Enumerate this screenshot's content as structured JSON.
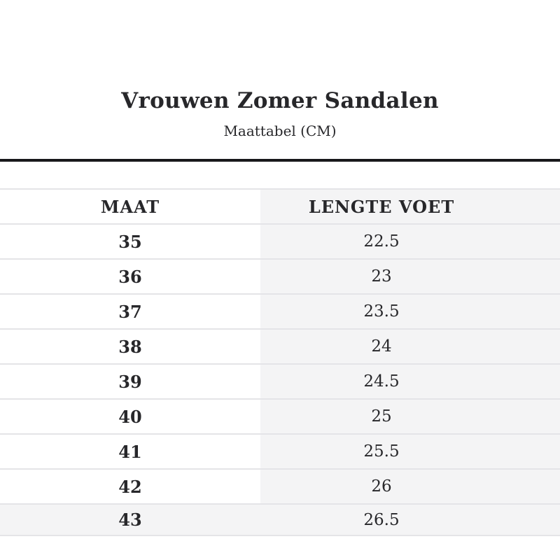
{
  "page": {
    "title": "Vrouwen Zomer Sandalen",
    "subtitle": "Maattabel (CM)"
  },
  "table": {
    "columns": [
      "MAAT",
      "LENGTE VOET"
    ],
    "rows": [
      {
        "maat": "35",
        "lengte_voet": "22.5"
      },
      {
        "maat": "36",
        "lengte_voet": "23"
      },
      {
        "maat": "37",
        "lengte_voet": "23.5"
      },
      {
        "maat": "38",
        "lengte_voet": "24"
      },
      {
        "maat": "39",
        "lengte_voet": "24.5"
      },
      {
        "maat": "40",
        "lengte_voet": "25"
      },
      {
        "maat": "41",
        "lengte_voet": "25.5"
      },
      {
        "maat": "42",
        "lengte_voet": "26"
      },
      {
        "maat": "43",
        "lengte_voet": "26.5"
      }
    ]
  },
  "colors": {
    "text": "#27272a",
    "rule": "#18181b",
    "row_alt_bg": "#f4f4f5",
    "divider": "#e4e4e7",
    "background": "#ffffff"
  }
}
